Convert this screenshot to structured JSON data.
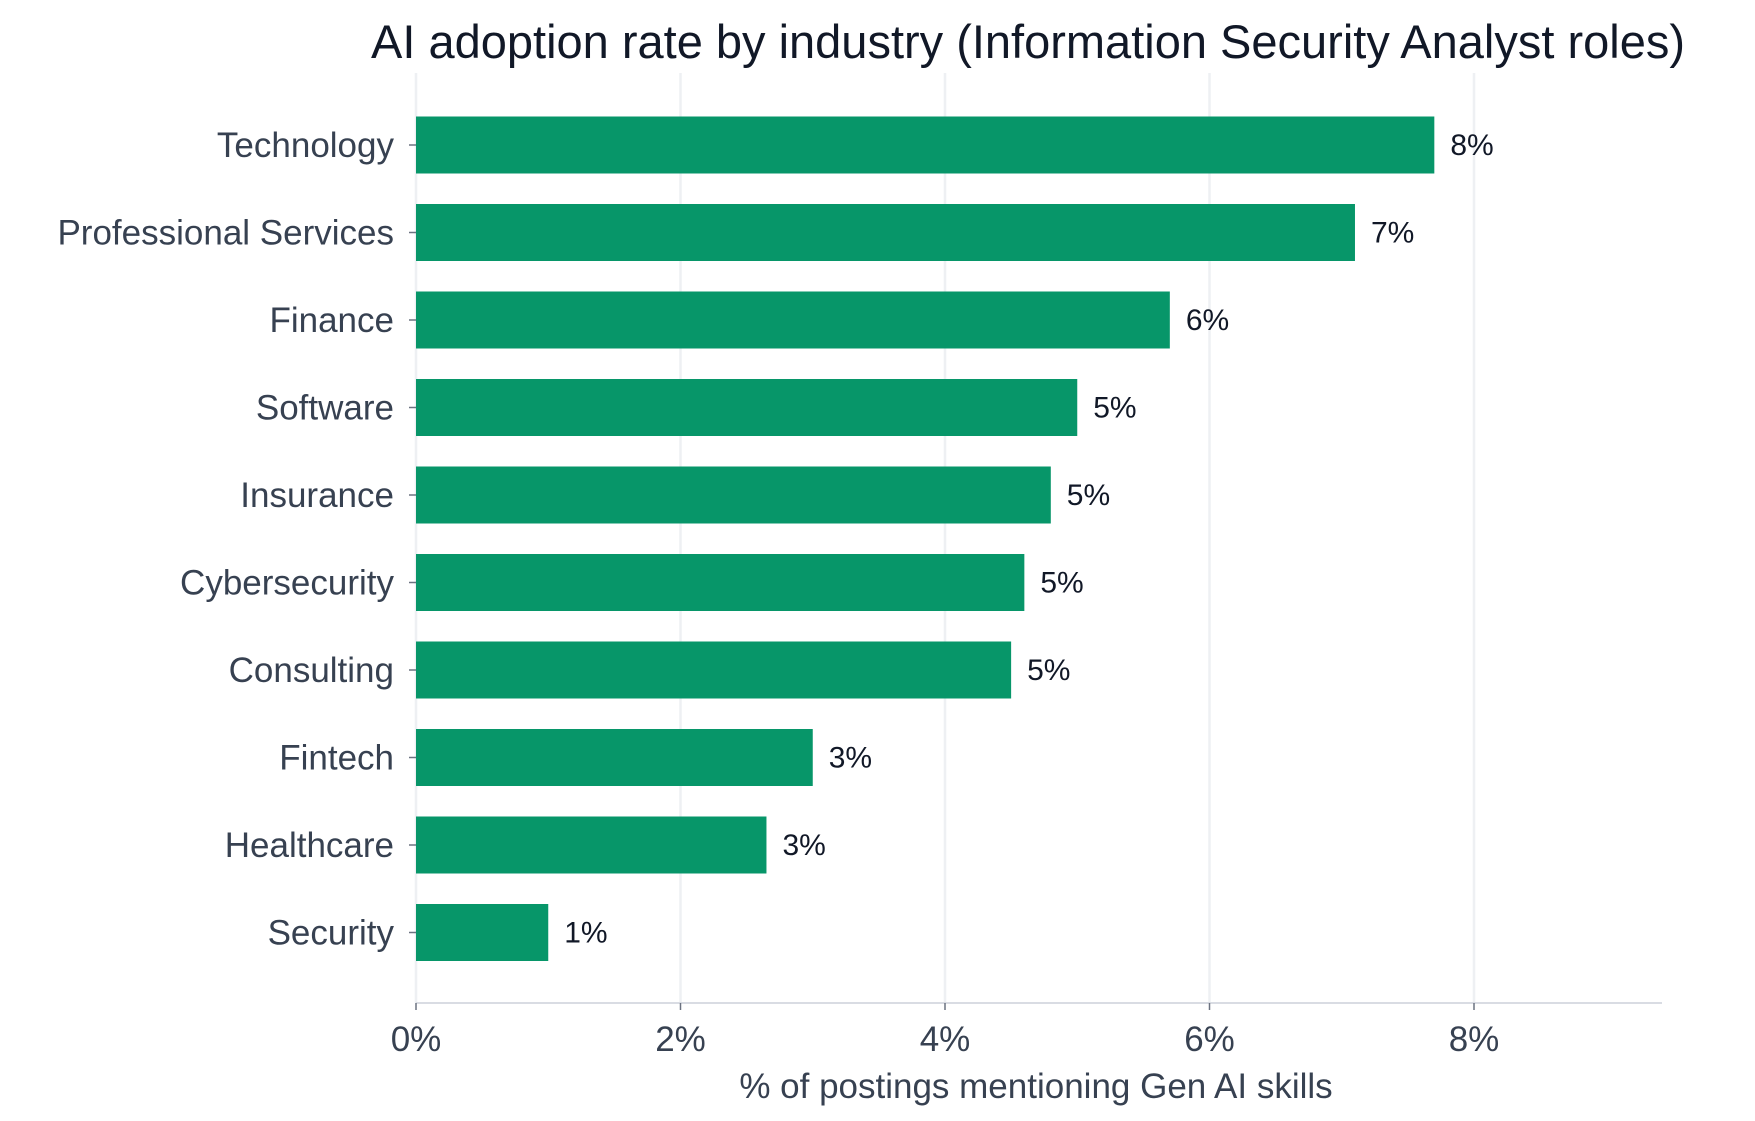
{
  "chart_data": {
    "type": "bar",
    "orientation": "horizontal",
    "title": "AI adoption rate by industry (Information Security Analyst roles)",
    "xlabel": "% of postings mentioning Gen AI skills",
    "ylabel": "",
    "xlim": [
      0,
      9.4
    ],
    "xticks": [
      0,
      2,
      4,
      6,
      8
    ],
    "xtick_labels": [
      "0%",
      "2%",
      "4%",
      "6%",
      "8%"
    ],
    "grid": "vertical",
    "bar_color": "#079669",
    "categories": [
      "Technology",
      "Professional Services",
      "Finance",
      "Software",
      "Insurance",
      "Cybersecurity",
      "Consulting",
      "Fintech",
      "Healthcare",
      "Security"
    ],
    "values": [
      7.7,
      7.1,
      5.7,
      5.0,
      4.8,
      4.6,
      4.5,
      3.0,
      2.65,
      1.0
    ],
    "value_labels": [
      "8%",
      "7%",
      "6%",
      "5%",
      "5%",
      "5%",
      "5%",
      "3%",
      "3%",
      "1%"
    ]
  }
}
